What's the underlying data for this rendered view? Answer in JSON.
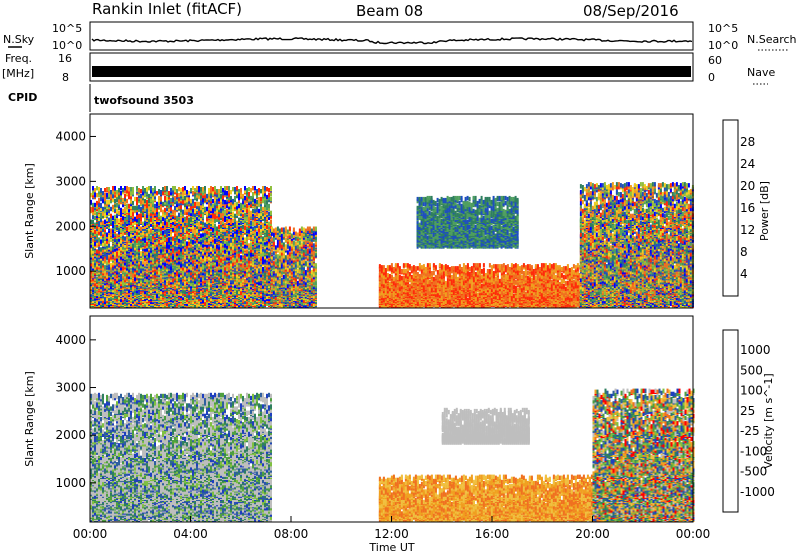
{
  "header": {
    "station": "Rankin Inlet (fitACF)",
    "beam": "Beam 08",
    "date": "08/Sep/2016"
  },
  "strips": {
    "nsky_label": "N.Sky",
    "nsky_ticks": [
      "10^5",
      "10^0"
    ],
    "nsearch_label": "N.Search",
    "nsearch_ticks": [
      "10^5",
      "10^0"
    ],
    "freq_label_1": "Freq.",
    "freq_label_2": "[MHz]",
    "freq_ticks": [
      "16",
      "8"
    ],
    "nave_label": "Nave",
    "nave_ticks": [
      "60",
      "0"
    ],
    "cpid_label": "CPID",
    "cpid_value": "twofsound 3503"
  },
  "chart_data": [
    {
      "type": "heatmap",
      "name": "power-panel",
      "xlabel": "",
      "ylabel": "Slant Range [km]",
      "x_range_hours": [
        0,
        24
      ],
      "y_range_km": [
        180,
        4500
      ],
      "y_ticks": [
        "1000",
        "2000",
        "3000",
        "4000"
      ],
      "colorbar_title": "Power [dB]",
      "colorbar_ticks": [
        "28",
        "24",
        "20",
        "16",
        "12",
        "8",
        "4"
      ],
      "colors": [
        "#0000ff",
        "#1e4fbf",
        "#2f7f5f",
        "#4f9f5f",
        "#8fbf3f",
        "#f0d020",
        "#f0a020",
        "#f07020",
        "#ff2a0a"
      ],
      "echo_regions": [
        {
          "t0": 0.0,
          "t1": 7.2,
          "r0": 180,
          "r1": 2800,
          "level": "mixed"
        },
        {
          "t0": 7.2,
          "t1": 9.0,
          "r0": 180,
          "r1": 1900,
          "level": "mixed"
        },
        {
          "t0": 11.5,
          "t1": 19.5,
          "r0": 180,
          "r1": 1100,
          "level": "strong"
        },
        {
          "t0": 13.0,
          "t1": 17.0,
          "r0": 1500,
          "r1": 2600,
          "level": "weak"
        },
        {
          "t0": 19.5,
          "t1": 24.0,
          "r0": 180,
          "r1": 2900,
          "level": "mixed"
        }
      ]
    },
    {
      "type": "heatmap",
      "name": "velocity-panel",
      "xlabel": "Time UT",
      "ylabel": "Slant Range [km]",
      "x_range_hours": [
        0,
        24
      ],
      "x_ticks": [
        "00:00",
        "04:00",
        "08:00",
        "12:00",
        "16:00",
        "20:00",
        "00:00"
      ],
      "y_range_km": [
        180,
        4500
      ],
      "y_ticks": [
        "1000",
        "2000",
        "3000",
        "4000"
      ],
      "colorbar_title": "Velocity [m s^-1]",
      "colorbar_ticks": [
        "1000",
        "500",
        "100",
        "25",
        "-25",
        "-100",
        "-500",
        "-1000"
      ],
      "colors": [
        "#1e3fbf",
        "#2f5f9f",
        "#2f7f5f",
        "#4fa03f",
        "#7fc040",
        "#bebebe",
        "#f0c040",
        "#f0a020",
        "#f07020",
        "#ff0000"
      ],
      "echo_regions": [
        {
          "t0": 0.0,
          "t1": 7.2,
          "r0": 180,
          "r1": 2800,
          "level": "negative-mixed"
        },
        {
          "t0": 11.5,
          "t1": 21.0,
          "r0": 180,
          "r1": 1100,
          "level": "positive-away"
        },
        {
          "t0": 14.0,
          "t1": 17.5,
          "r0": 1800,
          "r1": 2500,
          "level": "ground-scatter"
        },
        {
          "t0": 20.0,
          "t1": 24.0,
          "r0": 180,
          "r1": 2900,
          "level": "mixed"
        }
      ]
    }
  ]
}
